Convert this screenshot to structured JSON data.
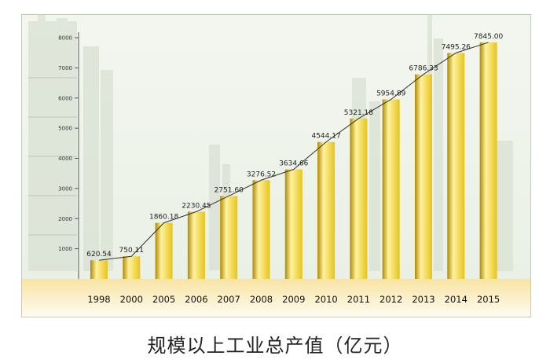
{
  "chart_data": {
    "type": "bar",
    "categories": [
      "1998",
      "2000",
      "2005",
      "2006",
      "2007",
      "2008",
      "2009",
      "2010",
      "2011",
      "2012",
      "2013",
      "2014",
      "2015"
    ],
    "values": [
      620.54,
      750.11,
      1860.18,
      2230.45,
      2751.6,
      3276.52,
      3634.66,
      4544.17,
      5321.18,
      5954.89,
      6786.33,
      7495.26,
      7845.0
    ],
    "value_labels": [
      "620.54",
      "750.11",
      "1860.18",
      "2230.45",
      "2751.60",
      "3276.52",
      "3634.66",
      "4544.17",
      "5321.18",
      "5954.89",
      "6786.33",
      "7495.26",
      "7845.00"
    ],
    "yticks": [
      "1000",
      "2000",
      "3000",
      "4000",
      "5000",
      "6000",
      "7000",
      "8000"
    ],
    "ylim": [
      0,
      8000
    ],
    "title": "规模以上工业总产值（亿元）",
    "trend_line": true,
    "grid": false,
    "colors": {
      "bar_light": "#fff2a0",
      "bar_mid": "#e6c41a",
      "bar_dark": "#b08a00",
      "ground": "#f6dc8a",
      "line": "#333333"
    }
  }
}
